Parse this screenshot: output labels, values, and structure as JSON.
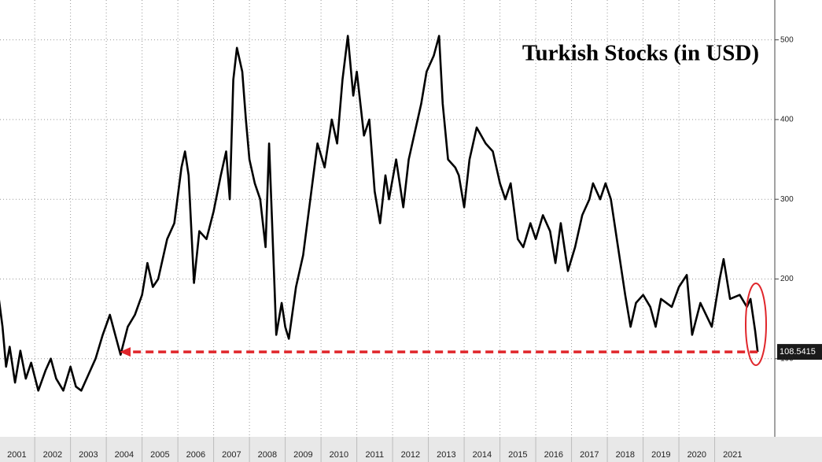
{
  "chart_data": {
    "type": "line",
    "title": "Turkish Stocks (in USD)",
    "x": [
      2001.0,
      2001.1,
      2001.2,
      2001.3,
      2001.45,
      2001.6,
      2001.75,
      2001.9,
      2002.1,
      2002.3,
      2002.45,
      2002.6,
      2002.8,
      2003.0,
      2003.15,
      2003.3,
      2003.5,
      2003.7,
      2003.9,
      2004.1,
      2004.25,
      2004.4,
      2004.6,
      2004.8,
      2005.0,
      2005.15,
      2005.3,
      2005.45,
      2005.7,
      2005.9,
      2006.1,
      2006.2,
      2006.3,
      2006.45,
      2006.6,
      2006.8,
      2007.0,
      2007.2,
      2007.35,
      2007.45,
      2007.55,
      2007.65,
      2007.8,
      2007.9,
      2008.0,
      2008.15,
      2008.3,
      2008.45,
      2008.55,
      2008.7,
      2008.75,
      2008.9,
      2009.0,
      2009.1,
      2009.3,
      2009.5,
      2009.7,
      2009.9,
      2010.1,
      2010.3,
      2010.45,
      2010.6,
      2010.75,
      2010.9,
      2011.0,
      2011.2,
      2011.35,
      2011.5,
      2011.65,
      2011.8,
      2011.9,
      2012.1,
      2012.3,
      2012.45,
      2012.6,
      2012.8,
      2012.95,
      2013.15,
      2013.3,
      2013.4,
      2013.55,
      2013.75,
      2013.85,
      2014.0,
      2014.15,
      2014.35,
      2014.6,
      2014.8,
      2015.0,
      2015.15,
      2015.3,
      2015.5,
      2015.65,
      2015.85,
      2016.0,
      2016.2,
      2016.4,
      2016.55,
      2016.7,
      2016.9,
      2017.1,
      2017.3,
      2017.5,
      2017.6,
      2017.8,
      2017.95,
      2018.1,
      2018.3,
      2018.5,
      2018.65,
      2018.8,
      2019.0,
      2019.2,
      2019.35,
      2019.5,
      2019.8,
      2020.0,
      2020.22,
      2020.37,
      2020.6,
      2020.92,
      2021.14,
      2021.25,
      2021.43,
      2021.7,
      2021.9,
      2022.0,
      2022.13,
      2022.2
    ],
    "series": [
      {
        "name": "Turkish Stocks (in USD)",
        "color": "#000000",
        "values": [
          175,
          140,
          90,
          115,
          70,
          110,
          75,
          95,
          60,
          85,
          100,
          75,
          60,
          90,
          65,
          60,
          80,
          100,
          130,
          155,
          130,
          105,
          140,
          155,
          180,
          220,
          190,
          200,
          250,
          270,
          340,
          360,
          330,
          195,
          260,
          250,
          285,
          330,
          360,
          300,
          450,
          490,
          460,
          400,
          350,
          320,
          300,
          240,
          370,
          190,
          130,
          170,
          140,
          125,
          190,
          230,
          300,
          370,
          340,
          400,
          370,
          450,
          505,
          430,
          460,
          380,
          400,
          310,
          270,
          330,
          300,
          350,
          290,
          350,
          380,
          420,
          460,
          480,
          505,
          420,
          350,
          340,
          330,
          290,
          350,
          390,
          370,
          360,
          320,
          300,
          320,
          250,
          240,
          270,
          250,
          280,
          260,
          220,
          270,
          210,
          240,
          280,
          300,
          320,
          300,
          320,
          300,
          240,
          180,
          140,
          170,
          180,
          165,
          140,
          175,
          165,
          190,
          205,
          130,
          170,
          140,
          200,
          225,
          175,
          180,
          165,
          175,
          135,
          108.5415
        ]
      }
    ],
    "xlim": [
      2001.03,
      2022.68
    ],
    "xticks": [
      2001,
      2002,
      2003,
      2004,
      2005,
      2006,
      2007,
      2008,
      2009,
      2010,
      2011,
      2012,
      2013,
      2014,
      2015,
      2016,
      2017,
      2018,
      2019,
      2020,
      2021
    ],
    "ylim": [
      2,
      550
    ],
    "yticks": [
      100,
      200,
      300,
      400,
      500
    ],
    "grid": true
  }
}
